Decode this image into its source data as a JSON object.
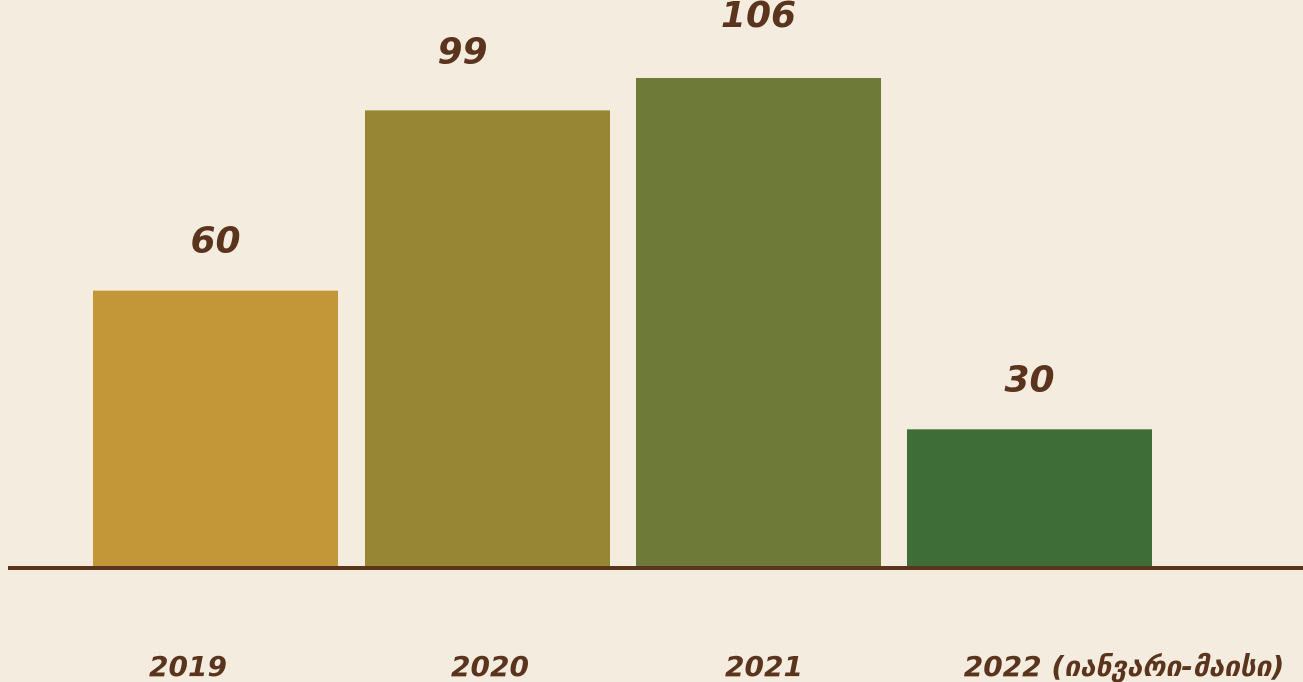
{
  "chart_data": {
    "type": "bar",
    "categories": [
      "2019",
      "2020",
      "2021",
      "2022 (იანვარი-მაისი)"
    ],
    "values": [
      60,
      99,
      106,
      30
    ],
    "data_labels": [
      "60",
      "99",
      "106",
      "30"
    ],
    "title": "",
    "xlabel": "",
    "ylabel": "",
    "ylim": [
      0,
      106
    ],
    "grid": false,
    "legend": "none",
    "colors": [
      "#c39737",
      "#978735",
      "#6e7a38",
      "#3f6d37"
    ],
    "axis_color": "#5a341d",
    "label_color": "#5a341d",
    "background": "#f4ecdf"
  }
}
